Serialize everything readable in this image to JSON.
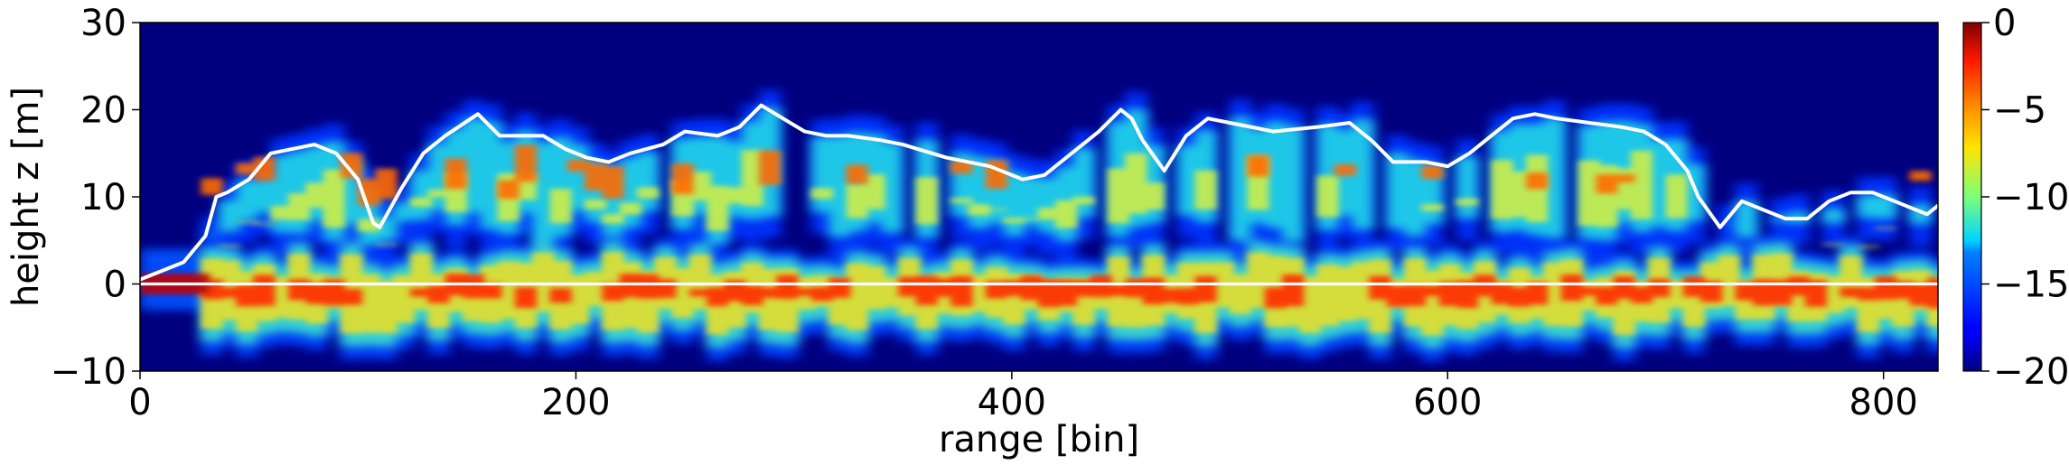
{
  "chart_data": {
    "type": "heatmap",
    "title": "",
    "xlabel": "range [bin]",
    "ylabel": "height z [m]",
    "xlim": [
      0,
      825
    ],
    "ylim": [
      -10,
      30
    ],
    "xticks": [
      0,
      200,
      400,
      600,
      800
    ],
    "yticks": [
      -10,
      0,
      10,
      20,
      30
    ],
    "grid": false,
    "colormap": "jet",
    "colorbar": {
      "vmin": -20,
      "vmax": 0,
      "ticks": [
        0,
        -5,
        -10,
        -15,
        -20
      ]
    },
    "colors": {
      "line": "#ffffff",
      "background": "#00007f",
      "axes": "#000000"
    },
    "series": [
      {
        "style": "white-line",
        "x": [
          0,
          10,
          20,
          30,
          35,
          40,
          50,
          60,
          70,
          80,
          90,
          100,
          107,
          110,
          120,
          130,
          140,
          155,
          165,
          175,
          185,
          195,
          205,
          215,
          225,
          240,
          250,
          265,
          275,
          285,
          295,
          305,
          315,
          325,
          340,
          350,
          370,
          390,
          405,
          415,
          425,
          440,
          450,
          455,
          460,
          470,
          480,
          490,
          500,
          520,
          540,
          555,
          565,
          575,
          590,
          600,
          610,
          620,
          630,
          640,
          650,
          665,
          680,
          690,
          700,
          710,
          715,
          725,
          735,
          745,
          755,
          765,
          775,
          785,
          795,
          805,
          815,
          820,
          825
        ],
        "y": [
          0.5,
          1.5,
          2.5,
          5.5,
          10,
          10.5,
          12,
          15,
          15.5,
          16,
          15,
          12,
          7,
          6.5,
          11,
          15,
          17,
          19.5,
          17,
          17,
          17,
          15.5,
          14.5,
          14,
          15,
          16,
          17.5,
          17,
          18,
          20.5,
          19,
          17.5,
          17,
          17,
          16.5,
          16,
          14.5,
          13.5,
          12,
          12.5,
          14.5,
          17.5,
          20,
          19,
          16.5,
          13,
          17,
          19,
          18.5,
          17.5,
          18,
          18.5,
          16.5,
          14,
          14,
          13.5,
          15,
          17,
          19,
          19.5,
          19,
          18.5,
          18,
          17.5,
          16,
          13,
          10,
          6.5,
          9.5,
          8.5,
          7.5,
          7.5,
          9.5,
          10.5,
          10.5,
          9.5,
          8.5,
          8,
          9
        ]
      },
      {
        "style": "white-line",
        "x": [
          0,
          825
        ],
        "y": [
          0,
          0
        ]
      }
    ]
  }
}
